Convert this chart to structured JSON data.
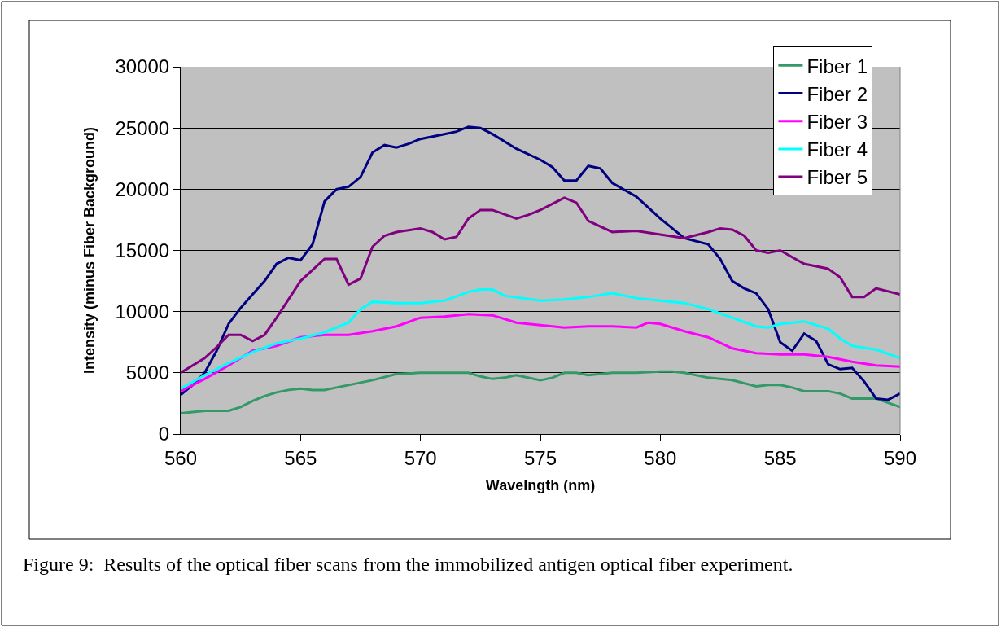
{
  "chart_data": {
    "type": "line",
    "xlabel": "Wavelngth (nm)",
    "ylabel": "Intensity (minus Fiber Background)",
    "xlim": [
      560,
      590
    ],
    "xticks": [
      560,
      565,
      570,
      575,
      580,
      585,
      590
    ],
    "ylim": [
      0,
      30000
    ],
    "yticks": [
      0,
      5000,
      10000,
      15000,
      20000,
      25000,
      30000
    ],
    "grid": "y",
    "legend": "top right",
    "marker": "none",
    "line_style": "solid",
    "annotations": [
      "Figure 9:  Results of the optical fiber scans from the immobilized antigen optical fiber experiment."
    ],
    "series": [
      {
        "name": "Fiber 1",
        "color": "#339966",
        "x": [
          560,
          561,
          562,
          562.5,
          563,
          563.5,
          564,
          564.5,
          565,
          565.5,
          566,
          566.5,
          567,
          568,
          569,
          570,
          571,
          572,
          572.5,
          573,
          573.5,
          574,
          575,
          575.5,
          576,
          576.5,
          577,
          578,
          579,
          580,
          580.5,
          581,
          582,
          583,
          584,
          584.5,
          585,
          585.5,
          586,
          586.5,
          587,
          587.5,
          588,
          589,
          590
        ],
        "values": [
          1700,
          1900,
          1900,
          2200,
          2700,
          3100,
          3400,
          3600,
          3700,
          3600,
          3600,
          3800,
          4000,
          4400,
          4900,
          5000,
          5000,
          5000,
          4700,
          4500,
          4600,
          4800,
          4400,
          4600,
          5000,
          5000,
          4800,
          5000,
          5000,
          5100,
          5100,
          5000,
          4600,
          4400,
          3900,
          4000,
          4000,
          3800,
          3500,
          3500,
          3500,
          3300,
          2900,
          2900,
          2200
        ]
      },
      {
        "name": "Fiber 2",
        "color": "#000080",
        "x": [
          560,
          560.5,
          561,
          561.5,
          562,
          562.5,
          563,
          563.5,
          564,
          564.5,
          565,
          565.5,
          566,
          566.5,
          567,
          567.5,
          568,
          568.5,
          569,
          569.5,
          570,
          571,
          571.5,
          572,
          572.5,
          573,
          574,
          575,
          575.5,
          576,
          576.5,
          577,
          577.5,
          578,
          579,
          580,
          580.5,
          581,
          582,
          582.5,
          583,
          583.5,
          584,
          584.5,
          585,
          585.5,
          586,
          586.5,
          587,
          587.5,
          588,
          588.5,
          589,
          589.5,
          590
        ],
        "values": [
          3200,
          4000,
          5000,
          6800,
          9000,
          10300,
          11400,
          12500,
          13900,
          14400,
          14200,
          15500,
          19000,
          20000,
          20200,
          21000,
          23000,
          23600,
          23400,
          23700,
          24100,
          24500,
          24700,
          25100,
          25000,
          24500,
          23300,
          22400,
          21800,
          20700,
          20700,
          21900,
          21700,
          20500,
          19400,
          17600,
          16800,
          16000,
          15500,
          14300,
          12500,
          11900,
          11500,
          10200,
          7500,
          6800,
          8200,
          7600,
          5700,
          5300,
          5400,
          4300,
          2900,
          2800,
          3300
        ]
      },
      {
        "name": "Fiber 3",
        "color": "#ff00ff",
        "x": [
          560,
          561,
          562,
          563,
          564,
          565,
          566,
          567,
          568,
          569,
          570,
          571,
          572,
          573,
          574,
          575,
          576,
          577,
          578,
          579,
          579.5,
          580,
          581,
          582,
          583,
          584,
          585,
          586,
          587,
          588,
          589,
          590
        ],
        "values": [
          3500,
          4500,
          5600,
          6800,
          7200,
          7900,
          8100,
          8100,
          8400,
          8800,
          9500,
          9600,
          9800,
          9700,
          9100,
          8900,
          8700,
          8800,
          8800,
          8700,
          9100,
          9000,
          8400,
          7900,
          7000,
          6600,
          6500,
          6500,
          6300,
          5900,
          5600,
          5500
        ]
      },
      {
        "name": "Fiber 4",
        "color": "#00ffff",
        "x": [
          560,
          561,
          562,
          563,
          564,
          565,
          566,
          567,
          567.5,
          568,
          569,
          570,
          571,
          572,
          572.5,
          573,
          573.5,
          575,
          576,
          577,
          578,
          579,
          580,
          581,
          582,
          583,
          584,
          584.5,
          585,
          586,
          587,
          587.5,
          588,
          589,
          590
        ],
        "values": [
          3700,
          4800,
          5800,
          6700,
          7400,
          7800,
          8300,
          9100,
          10200,
          10800,
          10700,
          10700,
          10900,
          11600,
          11800,
          11800,
          11300,
          10900,
          11000,
          11200,
          11500,
          11100,
          10900,
          10700,
          10200,
          9500,
          8800,
          8700,
          9000,
          9200,
          8600,
          7800,
          7200,
          6900,
          6200
        ]
      },
      {
        "name": "Fiber 5",
        "color": "#800080",
        "x": [
          560,
          561,
          561.5,
          562,
          562.5,
          563,
          563.5,
          564,
          565,
          566,
          566.5,
          567,
          567.5,
          568,
          568.5,
          569,
          570,
          570.5,
          571,
          571.5,
          572,
          572.5,
          573,
          574,
          574.5,
          575,
          575.5,
          576,
          576.5,
          577,
          578,
          579,
          580,
          581,
          582,
          582.5,
          583,
          583.5,
          584,
          584.5,
          585,
          586,
          587,
          587.5,
          588,
          588.5,
          589,
          590
        ],
        "values": [
          5000,
          6200,
          7100,
          8100,
          8100,
          7600,
          8100,
          9500,
          12500,
          14300,
          14300,
          12200,
          12700,
          15300,
          16200,
          16500,
          16800,
          16500,
          15900,
          16100,
          17600,
          18300,
          18300,
          17600,
          17900,
          18300,
          18800,
          19300,
          18900,
          17400,
          16500,
          16600,
          16300,
          16000,
          16500,
          16800,
          16700,
          16200,
          15000,
          14800,
          15000,
          13900,
          13500,
          12800,
          11200,
          11200,
          11900,
          11400
        ]
      }
    ]
  }
}
